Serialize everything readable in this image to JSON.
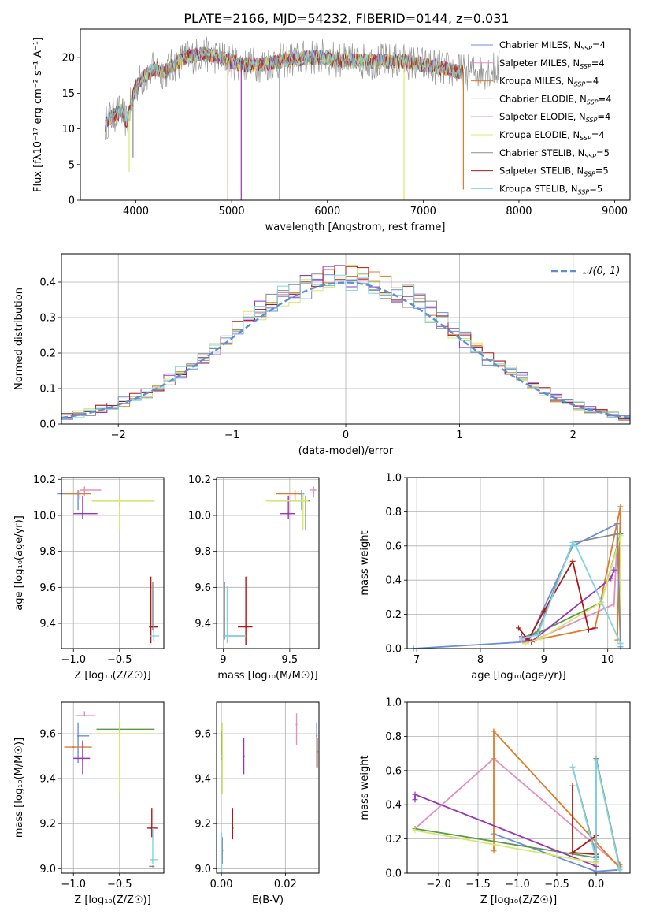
{
  "figure_title": "PLATE=2166, MJD=54232, FIBERID=0144, z=0.031",
  "colors": {
    "chabrier_miles": "#6a8fd8",
    "salpeter_miles": "#e38fc0",
    "kroupa_miles": "#e07b2a",
    "chabrier_elodie": "#5a9a4a",
    "salpeter_elodie": "#9a35b8",
    "kroupa_elodie": "#d7e86a",
    "chabrier_stelib": "#8a8a8a",
    "salpeter_stelib": "#b01818",
    "kroupa_stelib": "#7fd6e0",
    "gaussian": "#5a8fd8"
  },
  "chart_data": [
    {
      "id": "spectrum",
      "type": "line",
      "title": "PLATE=2166, MJD=54232, FIBERID=0144, z=0.031",
      "xlabel": "wavelength [Angstrom, rest frame]",
      "ylabel": "Flux [fλ10⁻¹⁷ erg cm⁻² s⁻¹ A⁻¹]",
      "xlim": [
        3420,
        9160
      ],
      "ylim": [
        0,
        24
      ],
      "xticks": [
        4000,
        5000,
        6000,
        7000,
        8000,
        9000
      ],
      "yticks": [
        0,
        5,
        10,
        15,
        20
      ],
      "grid": false,
      "legend_position": "top-right",
      "legend": [
        {
          "label": "Chabrier MILES, N",
          "sub": "SSP",
          "suffix": "=4",
          "color": "#6a8fd8"
        },
        {
          "label": "Salpeter MILES, N",
          "sub": "SSP",
          "suffix": "=4",
          "color": "#e38fc0"
        },
        {
          "label": "Kroupa MILES, N",
          "sub": "SSP",
          "suffix": "=4",
          "color": "#e07b2a"
        },
        {
          "label": "Chabrier ELODIE, N",
          "sub": "SSP",
          "suffix": "=4",
          "color": "#5a9a4a"
        },
        {
          "label": "Salpeter ELODIE, N",
          "sub": "SSP",
          "suffix": "=4",
          "color": "#9a35b8"
        },
        {
          "label": "Kroupa ELODIE, N",
          "sub": "SSP",
          "suffix": "=4",
          "color": "#d7e86a"
        },
        {
          "label": "Chabrier STELIB, N",
          "sub": "SSP",
          "suffix": "=5",
          "color": "#8a8a8a"
        },
        {
          "label": "Salpeter STELIB, N",
          "sub": "SSP",
          "suffix": "=5",
          "color": "#b01818"
        },
        {
          "label": "Kroupa STELIB, N",
          "sub": "SSP",
          "suffix": "=5",
          "color": "#7fd6e0"
        }
      ],
      "spectrum_anchors": {
        "x": [
          3680,
          3720,
          3780,
          3850,
          3900,
          3950,
          4000,
          4100,
          4200,
          4300,
          4400,
          4500,
          4700,
          4900,
          5100,
          5300,
          5500,
          5800,
          6000,
          6200,
          6400,
          6600,
          6800,
          7000,
          7200,
          7400,
          7600,
          7800
        ],
        "y": [
          10.5,
          11.5,
          12.0,
          12.5,
          11.0,
          13.5,
          16.0,
          17.5,
          18.5,
          18.0,
          19.0,
          20.0,
          20.5,
          20.0,
          19.0,
          19.0,
          19.5,
          20.0,
          20.0,
          19.5,
          19.5,
          19.5,
          19.5,
          19.0,
          18.5,
          18.0,
          18.0,
          18.5
        ]
      },
      "spikes": [
        {
          "x": 3930,
          "to": 4,
          "color": "#d7e86a"
        },
        {
          "x": 3970,
          "to": 6,
          "color": "#8a8a8a"
        },
        {
          "x": 4960,
          "to": 0,
          "color": "#e07b2a"
        },
        {
          "x": 5100,
          "to": 0,
          "color": "#9a35b8"
        },
        {
          "x": 5500,
          "to": 0,
          "color": "#8a8a8a"
        },
        {
          "x": 6800,
          "to": 0,
          "color": "#d7e86a"
        },
        {
          "x": 7420,
          "to": 1.5,
          "color": "#e07b2a"
        }
      ]
    },
    {
      "id": "residual_hist",
      "type": "line",
      "xlabel": "(data-model)/error",
      "ylabel": "Normed distribution",
      "xlim": [
        -2.5,
        2.5
      ],
      "ylim": [
        0,
        0.48
      ],
      "xticks": [
        -2,
        -1,
        0,
        1,
        2
      ],
      "xtick_labels": [
        "−2",
        "−1",
        "0",
        "1",
        "2"
      ],
      "yticks": [
        0.0,
        0.1,
        0.2,
        0.3,
        0.4
      ],
      "grid": true,
      "legend_position": "top-right",
      "legend_label": "𝒩(0, 1)",
      "bin_width": 0.1,
      "hist_colors": [
        "#6a8fd8",
        "#e07b2a",
        "#9a35b8",
        "#d7e86a",
        "#8a8a8a",
        "#b01818",
        "#7fd6e0"
      ]
    },
    {
      "id": "age_vs_Z",
      "type": "scatter",
      "xlabel": "Z [log₁₀(Z/Z☉)]",
      "ylabel": "age  [log₁₀(age/yr)]",
      "xlim": [
        -1.13,
        -0.02
      ],
      "ylim": [
        9.26,
        10.21
      ],
      "xticks": [
        -1.0,
        -0.5
      ],
      "xtick_labels": [
        "−1.0",
        "−0.5"
      ],
      "yticks": [
        9.4,
        9.6,
        9.8,
        10.0,
        10.2
      ],
      "grid": true,
      "points": [
        {
          "x": -0.95,
          "y": 10.12,
          "xe": [
            0.22,
            0.0
          ],
          "ye": [
            0.09,
            0.02
          ],
          "color": "#6a8fd8"
        },
        {
          "x": -0.88,
          "y": 10.14,
          "xe": [
            0.05,
            0.18
          ],
          "ye": [
            0.03,
            0.02
          ],
          "color": "#e38fc0"
        },
        {
          "x": -0.93,
          "y": 10.12,
          "xe": [
            0.17,
            0.12
          ],
          "ye": [
            0.03,
            0.02
          ],
          "color": "#e07b2a"
        },
        {
          "x": -0.5,
          "y": 10.08,
          "xe": [
            0.3,
            0.38
          ],
          "ye": [
            0.03,
            0.03
          ],
          "color": "#5a9a4a"
        },
        {
          "x": -0.9,
          "y": 10.01,
          "xe": [
            0.1,
            0.16
          ],
          "ye": [
            0.03,
            0.1
          ],
          "color": "#9a35b8"
        },
        {
          "x": -0.5,
          "y": 10.08,
          "xe": [
            0.3,
            0.38
          ],
          "ye": [
            0.16,
            0.03
          ],
          "color": "#d7e86a"
        },
        {
          "x": -0.14,
          "y": 9.38,
          "xe": [
            0.03,
            0.05
          ],
          "ye": [
            0.02,
            0.25
          ],
          "color": "#8a8a8a"
        },
        {
          "x": -0.16,
          "y": 9.38,
          "xe": [
            0.02,
            0.08
          ],
          "ye": [
            0.09,
            0.28
          ],
          "color": "#b01818"
        },
        {
          "x": -0.13,
          "y": 9.33,
          "xe": [
            0.04,
            0.06
          ],
          "ye": [
            0.03,
            0.25
          ],
          "color": "#7fd6e0"
        }
      ]
    },
    {
      "id": "age_vs_mass",
      "type": "scatter",
      "xlabel": "mass [log₁₀(M/M☉)]",
      "ylabel": "",
      "xlim": [
        8.95,
        9.72
      ],
      "ylim": [
        9.26,
        10.21
      ],
      "xticks": [
        9.0,
        9.5
      ],
      "yticks": [
        9.4,
        9.6,
        9.8,
        10.0,
        10.2
      ],
      "grid": true,
      "points": [
        {
          "x": 9.59,
          "y": 10.12,
          "xe": [
            0.02,
            0.02
          ],
          "ye": [
            0.09,
            0.02
          ],
          "color": "#6a8fd8"
        },
        {
          "x": 9.68,
          "y": 10.14,
          "xe": [
            0.03,
            0.02
          ],
          "ye": [
            0.04,
            0.02
          ],
          "color": "#e38fc0"
        },
        {
          "x": 9.54,
          "y": 10.12,
          "xe": [
            0.14,
            0.04
          ],
          "ye": [
            0.04,
            0.02
          ],
          "color": "#e07b2a"
        },
        {
          "x": 9.62,
          "y": 10.08,
          "xe": [
            0.28,
            0.03
          ],
          "ye": [
            0.16,
            0.03
          ],
          "color": "#5a9a4a"
        },
        {
          "x": 9.49,
          "y": 10.01,
          "xe": [
            0.06,
            0.05
          ],
          "ye": [
            0.03,
            0.1
          ],
          "color": "#9a35b8"
        },
        {
          "x": 9.6,
          "y": 10.08,
          "xe": [
            0.28,
            0.04
          ],
          "ye": [
            0.16,
            0.04
          ],
          "color": "#d7e86a"
        },
        {
          "x": 9.01,
          "y": 9.33,
          "xe": [
            0.01,
            0.16
          ],
          "ye": [
            0.02,
            0.3
          ],
          "color": "#8a8a8a"
        },
        {
          "x": 9.17,
          "y": 9.38,
          "xe": [
            0.06,
            0.05
          ],
          "ye": [
            0.1,
            0.28
          ],
          "color": "#b01818"
        },
        {
          "x": 9.03,
          "y": 9.33,
          "xe": [
            0.03,
            0.14
          ],
          "ye": [
            0.04,
            0.28
          ],
          "color": "#7fd6e0"
        }
      ]
    },
    {
      "id": "weight_vs_age",
      "type": "line",
      "xlabel": "age  [log₁₀(age/yr)]",
      "ylabel": "mass weight",
      "xlim": [
        6.85,
        10.35
      ],
      "ylim": [
        0,
        1.0
      ],
      "xticks": [
        7,
        8,
        9,
        10
      ],
      "yticks": [
        0.0,
        0.2,
        0.4,
        0.6,
        0.8,
        1.0
      ],
      "grid": true,
      "series": [
        {
          "color": "#6a8fd8",
          "x": [
            6.95,
            8.75,
            9.45,
            10.15,
            10.2
          ],
          "y": [
            0.0,
            0.04,
            0.6,
            0.73,
            0.01
          ]
        },
        {
          "color": "#e38fc0",
          "x": [
            8.65,
            8.8,
            10.1,
            10.15
          ],
          "y": [
            0.05,
            0.04,
            0.26,
            0.67
          ]
        },
        {
          "color": "#e07b2a",
          "x": [
            8.7,
            8.85,
            9.8,
            10.2,
            10.15
          ],
          "y": [
            0.03,
            0.05,
            0.12,
            0.83,
            0.05
          ]
        },
        {
          "color": "#5a9a4a",
          "x": [
            8.7,
            8.9,
            9.9,
            10.2,
            10.2
          ],
          "y": [
            0.06,
            0.09,
            0.27,
            0.67,
            0.03
          ]
        },
        {
          "color": "#9a35b8",
          "x": [
            8.65,
            8.8,
            10.05,
            10.1
          ],
          "y": [
            0.07,
            0.04,
            0.41,
            0.46
          ]
        },
        {
          "color": "#d7e86a",
          "x": [
            8.7,
            8.95,
            9.9,
            10.2,
            10.2
          ],
          "y": [
            0.03,
            0.06,
            0.27,
            0.66,
            0.03
          ]
        },
        {
          "color": "#8a8a8a",
          "x": [
            8.65,
            8.9,
            9.45,
            10.15,
            10.2
          ],
          "y": [
            0.06,
            0.1,
            0.62,
            0.67,
            0.03
          ]
        },
        {
          "color": "#b01818",
          "x": [
            8.6,
            8.75,
            9.0,
            9.45,
            9.7,
            9.8
          ],
          "y": [
            0.12,
            0.05,
            0.22,
            0.51,
            0.11,
            0.12
          ]
        },
        {
          "color": "#7fd6e0",
          "x": [
            8.65,
            8.9,
            9.45,
            9.5,
            10.2
          ],
          "y": [
            0.06,
            0.08,
            0.62,
            0.6,
            0.03
          ]
        }
      ]
    },
    {
      "id": "mass_vs_Z",
      "type": "scatter",
      "xlabel": "Z [log₁₀(Z/Z☉)]",
      "ylabel": "mass [log₁₀(M/M☉)]",
      "xlim": [
        -1.13,
        -0.02
      ],
      "ylim": [
        8.98,
        9.74
      ],
      "xticks": [
        -1.0,
        -0.5
      ],
      "xtick_labels": [
        "−1.0",
        "−0.5"
      ],
      "yticks": [
        9.0,
        9.2,
        9.4,
        9.6
      ],
      "grid": true,
      "points": [
        {
          "x": -0.95,
          "y": 9.59,
          "xe": [
            0.0,
            0.12
          ],
          "ye": [
            0.12,
            0.06
          ],
          "color": "#6a8fd8"
        },
        {
          "x": -0.88,
          "y": 9.68,
          "xe": [
            0.1,
            0.12
          ],
          "ye": [
            0.0,
            0.02
          ],
          "color": "#e38fc0"
        },
        {
          "x": -1.0,
          "y": 9.54,
          "xe": [
            0.1,
            0.2
          ],
          "ye": [
            0.0,
            0.0
          ],
          "color": "#e07b2a"
        },
        {
          "x": -0.5,
          "y": 9.62,
          "xe": [
            0.25,
            0.38
          ],
          "ye": [
            0.03,
            0.03
          ],
          "color": "#5a9a4a"
        },
        {
          "x": -0.9,
          "y": 9.49,
          "xe": [
            0.1,
            0.08
          ],
          "ye": [
            0.07,
            0.08
          ],
          "color": "#9a35b8"
        },
        {
          "x": -0.5,
          "y": 9.6,
          "xe": [
            0.25,
            0.38
          ],
          "ye": [
            0.26,
            0.06
          ],
          "color": "#d7e86a"
        },
        {
          "x": -0.14,
          "y": 9.01,
          "xe": [
            0.04,
            0.02
          ],
          "ye": [
            0.0,
            0.0
          ],
          "color": "#8a8a8a"
        },
        {
          "x": -0.15,
          "y": 9.18,
          "xe": [
            0.05,
            0.06
          ],
          "ye": [
            0.04,
            0.09
          ],
          "color": "#b01818"
        },
        {
          "x": -0.14,
          "y": 9.04,
          "xe": [
            0.03,
            0.06
          ],
          "ye": [
            0.02,
            0.14
          ],
          "color": "#7fd6e0"
        }
      ]
    },
    {
      "id": "mass_vs_ebv",
      "type": "scatter",
      "xlabel": "E(B-V)",
      "ylabel": "",
      "xlim": [
        -0.0015,
        0.0305
      ],
      "ylim": [
        8.98,
        9.74
      ],
      "xticks": [
        0.0,
        0.02
      ],
      "xtick_labels": [
        "0.00",
        "0.02"
      ],
      "yticks": [
        9.0,
        9.2,
        9.4,
        9.6
      ],
      "grid": true,
      "points": [
        {
          "x": 0.0298,
          "y": 9.59,
          "ye": [
            0.14,
            0.06
          ],
          "color": "#6a8fd8"
        },
        {
          "x": 0.0235,
          "y": 9.64,
          "ye": [
            0.09,
            0.05
          ],
          "color": "#e38fc0"
        },
        {
          "x": 0.03,
          "y": 9.52,
          "ye": [
            0.07,
            0.06
          ],
          "color": "#e07b2a"
        },
        {
          "x": 0.0002,
          "y": 9.55,
          "ye": [
            0.07,
            0.06
          ],
          "color": "#5a9a4a"
        },
        {
          "x": 0.007,
          "y": 9.5,
          "ye": [
            0.08,
            0.08
          ],
          "color": "#9a35b8"
        },
        {
          "x": 0.0003,
          "y": 9.5,
          "ye": [
            0.17,
            0.15
          ],
          "color": "#d7e86a"
        },
        {
          "x": 0.0003,
          "y": 9.08,
          "ye": [
            0.06,
            0.06
          ],
          "color": "#8a8a8a"
        },
        {
          "x": 0.0035,
          "y": 9.18,
          "ye": [
            0.05,
            0.09
          ],
          "color": "#b01818"
        },
        {
          "x": 0.0001,
          "y": 9.04,
          "ye": [
            0.06,
            0.12
          ],
          "color": "#7fd6e0"
        }
      ]
    },
    {
      "id": "weight_vs_Z",
      "type": "line",
      "xlabel": "Z [log₁₀(Z/Z☉)]",
      "ylabel": "mass weight",
      "xlim": [
        -2.4,
        0.43
      ],
      "ylim": [
        0,
        1.0
      ],
      "xticks": [
        -2.0,
        -1.5,
        -1.0,
        -0.5,
        0.0
      ],
      "xtick_labels": [
        "−2.0",
        "−1.5",
        "−1.0",
        "−0.5",
        "0.0"
      ],
      "yticks": [
        0.0,
        0.2,
        0.4,
        0.6,
        0.8,
        1.0
      ],
      "grid": true,
      "series": [
        {
          "color": "#6a8fd8",
          "x": [
            -1.3,
            0.0,
            0.3,
            0.3
          ],
          "y": [
            0.23,
            0.01,
            0.02,
            0.03
          ]
        },
        {
          "color": "#e38fc0",
          "x": [
            -2.3,
            -1.3,
            0.3,
            0.3
          ],
          "y": [
            0.26,
            0.67,
            0.04,
            0.05
          ]
        },
        {
          "color": "#e07b2a",
          "x": [
            -1.3,
            -1.3,
            0.3,
            0.3
          ],
          "y": [
            0.13,
            0.83,
            0.03,
            0.05
          ]
        },
        {
          "color": "#5a9a4a",
          "x": [
            -2.3,
            0.0,
            0.0,
            0.3
          ],
          "y": [
            0.26,
            0.09,
            0.67,
            0.03
          ]
        },
        {
          "color": "#9a35b8",
          "x": [
            -2.3,
            -2.3,
            0.0,
            0.0
          ],
          "y": [
            0.43,
            0.46,
            0.04,
            0.07
          ]
        },
        {
          "color": "#d7e86a",
          "x": [
            -2.3,
            0.0,
            0.0,
            0.3
          ],
          "y": [
            0.25,
            0.06,
            0.66,
            0.02
          ]
        },
        {
          "color": "#8a8a8a",
          "x": [
            -0.3,
            0.0,
            0.0,
            0.3
          ],
          "y": [
            0.62,
            0.1,
            0.67,
            0.03
          ]
        },
        {
          "color": "#b01818",
          "x": [
            -0.3,
            -0.3,
            0.0,
            0.0,
            -0.3
          ],
          "y": [
            0.51,
            0.12,
            0.11,
            0.22,
            0.12
          ]
        },
        {
          "color": "#7fd6e0",
          "x": [
            -0.3,
            0.0,
            0.0,
            0.3
          ],
          "y": [
            0.62,
            0.08,
            0.66,
            0.02
          ]
        }
      ]
    }
  ]
}
